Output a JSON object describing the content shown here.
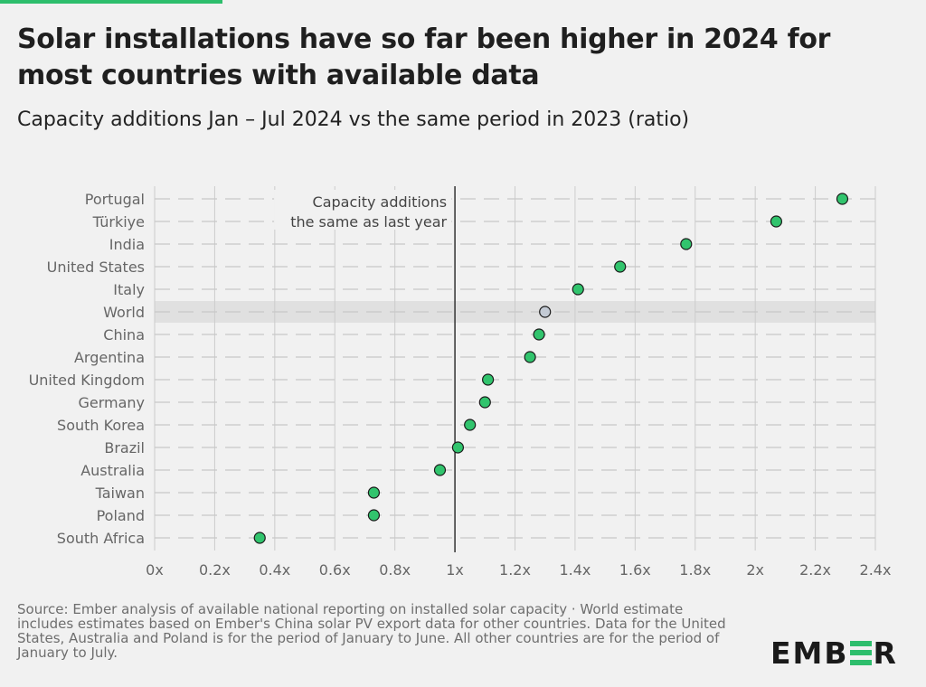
{
  "colors": {
    "accent": "#2dbe6c",
    "point_fill": "#31c46d",
    "point_world": "#c3cad4",
    "point_stroke": "#1a1a1a",
    "grid": "#cccccc",
    "highlight_band": "#e0e0e0",
    "reference_line": "#333333",
    "background": "#f1f1f1"
  },
  "title": "Solar installations have so far been higher in 2024 for most countries with available data",
  "subtitle": "Capacity additions Jan – Jul 2024 vs the same period in 2023 (ratio)",
  "source": "Source: Ember analysis of available national reporting on installed solar capacity · World estimate includes estimates based on Ember's China solar PV export data for other countries. Data for the United States, Australia and Poland is for the period of January to June. All other countries are for the period of January to July.",
  "logo": {
    "text_before": "EMB",
    "text_after": "R",
    "icon": "ember-e-bars-icon"
  },
  "chart_data": {
    "type": "scatter",
    "title": "Solar installations have so far been higher in 2024 for most countries with available data",
    "subtitle": "Capacity additions Jan – Jul 2024 vs the same period in 2023 (ratio)",
    "categories": [
      "Portugal",
      "Türkiye",
      "India",
      "United States",
      "Italy",
      "World",
      "China",
      "Argentina",
      "United Kingdom",
      "Germany",
      "South Korea",
      "Brazil",
      "Australia",
      "Taiwan",
      "Poland",
      "South Africa"
    ],
    "values": [
      2.29,
      2.07,
      1.77,
      1.55,
      1.41,
      1.3,
      1.28,
      1.25,
      1.11,
      1.1,
      1.05,
      1.01,
      0.95,
      0.73,
      0.73,
      0.35
    ],
    "highlight": "World",
    "xlim": [
      0,
      2.4
    ],
    "xticks": [
      0,
      0.2,
      0.4,
      0.6,
      0.8,
      1,
      1.2,
      1.4,
      1.6,
      1.8,
      2,
      2.2,
      2.4
    ],
    "xtick_labels": [
      "0x",
      "0.2x",
      "0.4x",
      "0.6x",
      "0.8x",
      "1x",
      "1.2x",
      "1.4x",
      "1.6x",
      "1.8x",
      "2x",
      "2.2x",
      "2.4x"
    ],
    "reference_line": {
      "x": 1,
      "label_lines": [
        "Capacity additions",
        "the same as last year"
      ]
    },
    "grid": true,
    "xlabel": "",
    "ylabel": ""
  }
}
